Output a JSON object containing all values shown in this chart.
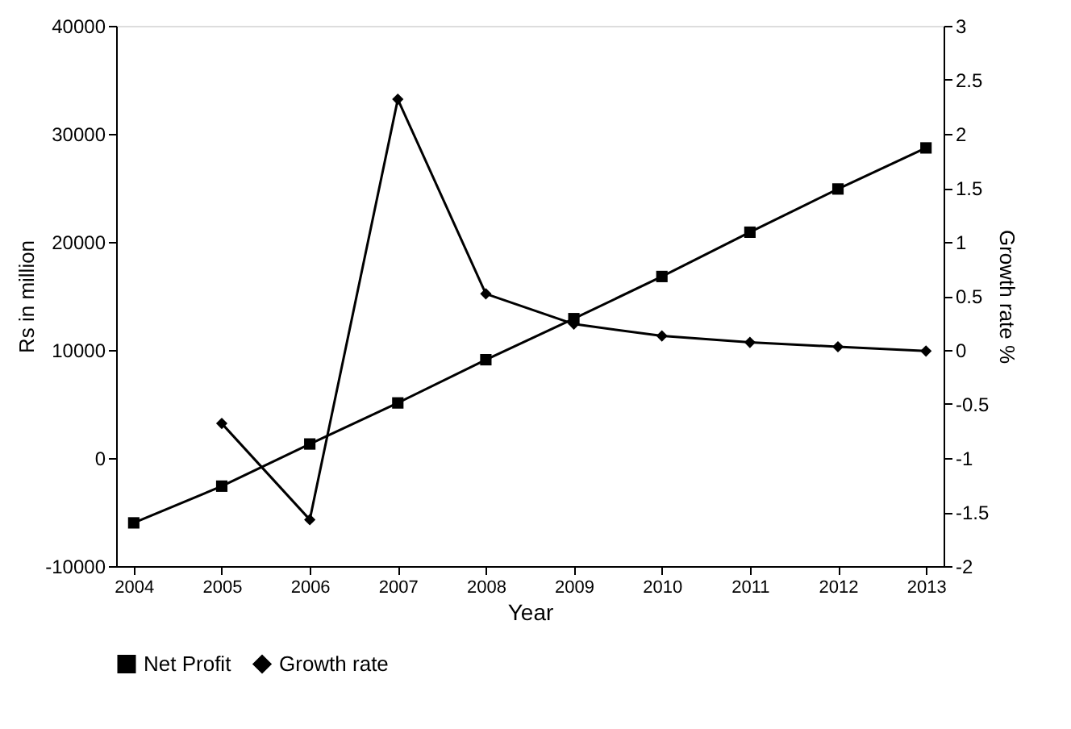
{
  "chart_data": {
    "type": "line",
    "xlabel": "Year",
    "ylabel": "Rs in million",
    "y2label": "Growth rate %",
    "categories": [
      "2004",
      "2005",
      "2006",
      "2007",
      "2008",
      "2009",
      "2010",
      "2011",
      "2012",
      "2013"
    ],
    "series": [
      {
        "name": "Net Profit",
        "color": "#000000",
        "marker": "square",
        "values": [
          -6000,
          -2600,
          1300,
          5100,
          9100,
          12900,
          16800,
          20900,
          24900,
          28700
        ]
      },
      {
        "name": "Growth rate",
        "color": "#000000",
        "marker": "diamond",
        "axis": "y2",
        "values": [
          null,
          -0.68,
          -1.57,
          2.32,
          0.52,
          0.24,
          0.13,
          0.07,
          0.03,
          -0.01
        ]
      }
    ],
    "ylim": [
      -10000,
      40000
    ],
    "yticks": [
      -10000,
      0,
      10000,
      20000,
      30000,
      40000
    ],
    "y2lim": [
      -2,
      3
    ],
    "y2ticks": [
      -2,
      -1.5,
      -1,
      -0.5,
      0,
      0.5,
      1,
      1.5,
      2,
      2.5,
      3
    ],
    "grid": false,
    "legend": "bottom",
    "line_style": "solid"
  }
}
